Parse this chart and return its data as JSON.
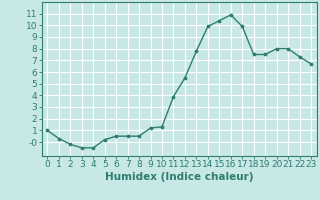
{
  "x": [
    0,
    1,
    2,
    3,
    4,
    5,
    6,
    7,
    8,
    9,
    10,
    11,
    12,
    13,
    14,
    15,
    16,
    17,
    18,
    19,
    20,
    21,
    22,
    23
  ],
  "y": [
    1.0,
    0.3,
    -0.2,
    -0.5,
    -0.5,
    0.2,
    0.5,
    0.5,
    0.5,
    1.2,
    1.3,
    3.9,
    5.5,
    7.8,
    9.9,
    10.4,
    10.9,
    9.9,
    7.5,
    7.5,
    8.0,
    8.0,
    7.3,
    6.7
  ],
  "line_color": "#2e7d6e",
  "marker": "o",
  "marker_size": 2.2,
  "bg_color": "#c8e8e8",
  "grid_color": "#ffffff",
  "xlabel": "Humidex (Indice chaleur)",
  "xlim": [
    -0.5,
    23.5
  ],
  "ylim": [
    -1.2,
    12
  ],
  "yticks": [
    0,
    1,
    2,
    3,
    4,
    5,
    6,
    7,
    8,
    9,
    10,
    11
  ],
  "ytick_labels": [
    "-0",
    "1",
    "2",
    "3",
    "4",
    "5",
    "6",
    "7",
    "8",
    "9",
    "10",
    "11"
  ],
  "xticks": [
    0,
    1,
    2,
    3,
    4,
    5,
    6,
    7,
    8,
    9,
    10,
    11,
    12,
    13,
    14,
    15,
    16,
    17,
    18,
    19,
    20,
    21,
    22,
    23
  ],
  "tick_font_size": 6.5,
  "xlabel_fontsize": 7.5,
  "line_width": 1.0,
  "spine_color": "#2e7d6e"
}
